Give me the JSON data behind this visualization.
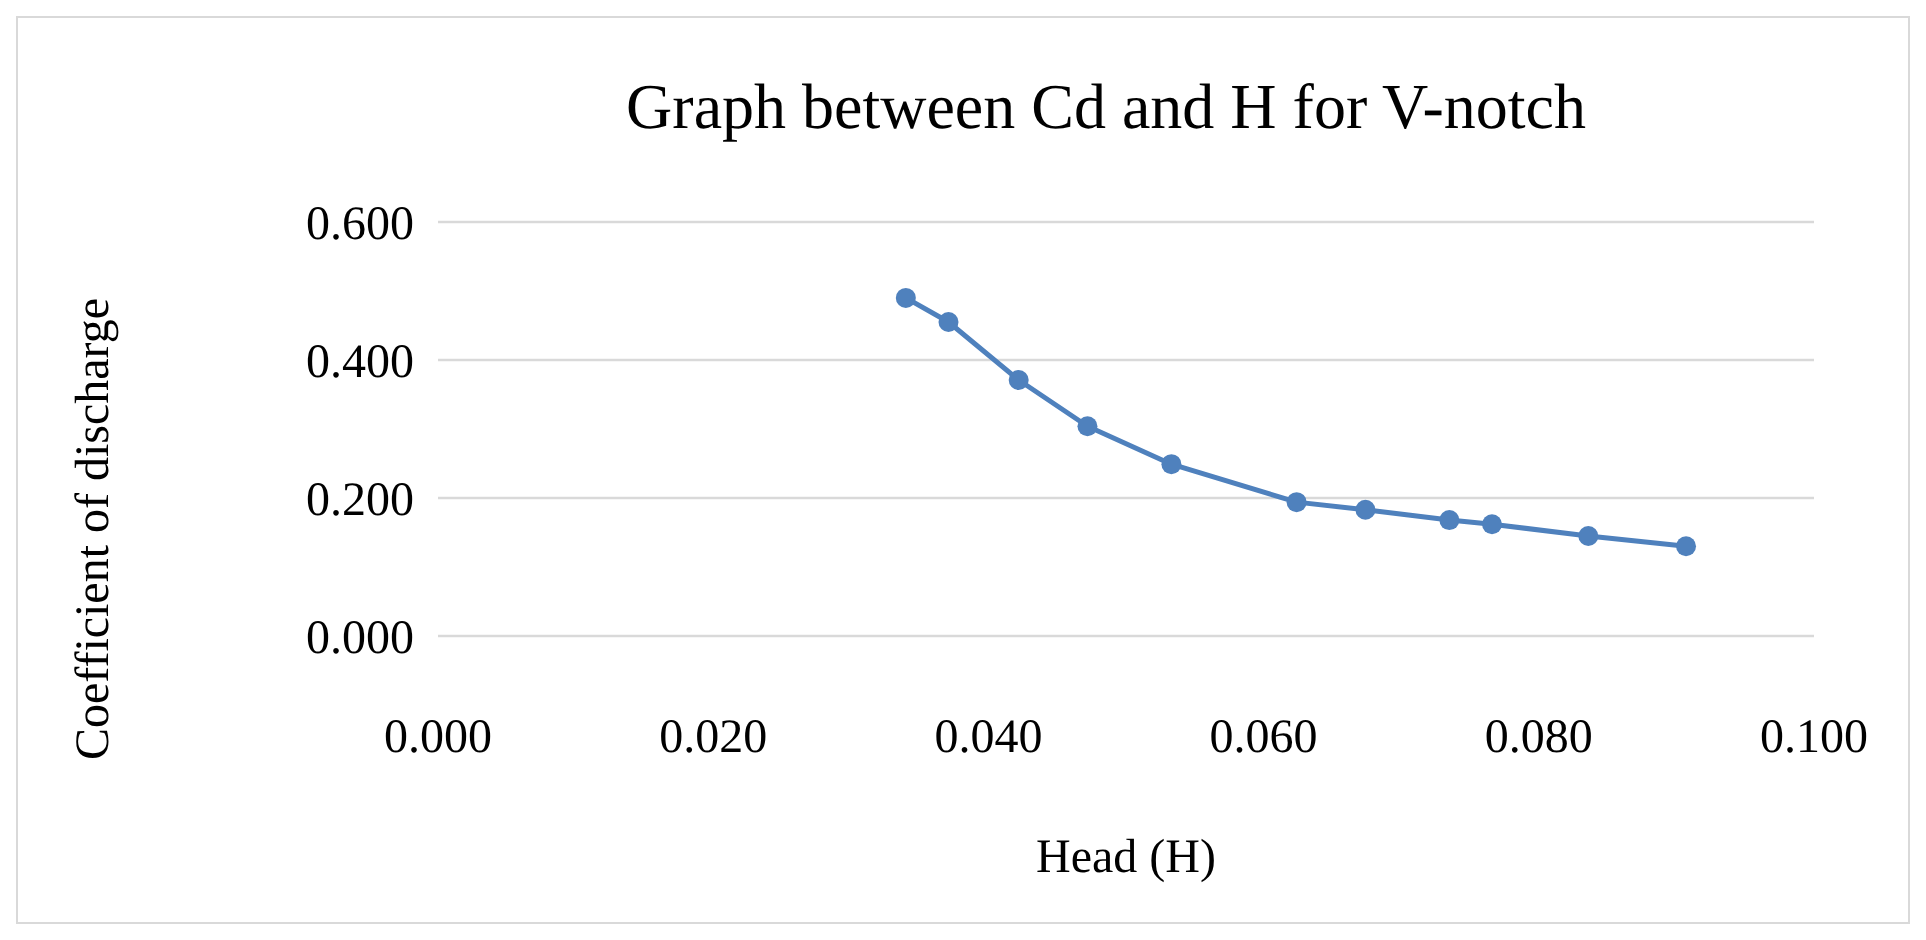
{
  "chart_data": {
    "type": "line",
    "title": "Graph between Cd and H for V-notch",
    "xlabel": "Head (H)",
    "ylabel": "Coefficient of discharge",
    "x": [
      0.034,
      0.0371,
      0.0422,
      0.0472,
      0.0533,
      0.0624,
      0.0674,
      0.0735,
      0.0766,
      0.0836,
      0.0907
    ],
    "series": [
      {
        "color": "#4f81bd",
        "values": [
          0.49,
          0.455,
          0.371,
          0.304,
          0.249,
          0.194,
          0.183,
          0.168,
          0.162,
          0.145,
          0.13
        ]
      }
    ],
    "xlim": [
      0,
      0.1
    ],
    "xticks": [
      {
        "value": 0,
        "label": "0.000"
      },
      {
        "value": 0.02,
        "label": "0.020"
      },
      {
        "value": 0.04,
        "label": "0.040"
      },
      {
        "value": 0.06,
        "label": "0.060"
      },
      {
        "value": 0.08,
        "label": "0.080"
      },
      {
        "value": 0.1,
        "label": "0.100"
      }
    ],
    "ylim": [
      0,
      0.6
    ],
    "yticks": [
      {
        "value": 0,
        "label": "0.000"
      },
      {
        "value": 0.2,
        "label": "0.200"
      },
      {
        "value": 0.4,
        "label": "0.400"
      },
      {
        "value": 0.6,
        "label": "0.600"
      }
    ],
    "grid": "y",
    "marker": "circle",
    "line_style": "solid"
  }
}
